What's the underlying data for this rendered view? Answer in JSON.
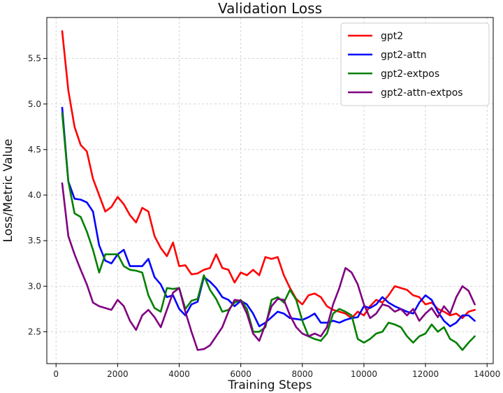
{
  "chart_data": {
    "type": "line",
    "title": "Validation Loss",
    "xlabel": "Training Steps",
    "ylabel": "Loss/Metric Value",
    "xlim": [
      -300,
      14200
    ],
    "ylim": [
      2.15,
      5.95
    ],
    "xticks": [
      0,
      2000,
      4000,
      6000,
      8000,
      10000,
      12000,
      14000
    ],
    "yticks": [
      2.5,
      3.0,
      3.5,
      4.0,
      4.5,
      5.0,
      5.5
    ],
    "xtick_labels": [
      "0",
      "2000",
      "4000",
      "6000",
      "8000",
      "10000",
      "12000",
      "14000"
    ],
    "ytick_labels": [
      "2.5",
      "3.0",
      "3.5",
      "4.0",
      "4.5",
      "5.0",
      "5.5"
    ],
    "grid": true,
    "legend_position": "top-right",
    "x": [
      200,
      400,
      600,
      800,
      1000,
      1200,
      1400,
      1600,
      1800,
      2000,
      2200,
      2400,
      2600,
      2800,
      3000,
      3200,
      3400,
      3600,
      3800,
      4000,
      4200,
      4400,
      4600,
      4800,
      5000,
      5200,
      5400,
      5600,
      5800,
      6000,
      6200,
      6400,
      6600,
      6800,
      7000,
      7200,
      7400,
      7600,
      7800,
      8000,
      8200,
      8400,
      8600,
      8800,
      9000,
      9200,
      9400,
      9600,
      9800,
      10000,
      10200,
      10400,
      10600,
      10800,
      11000,
      11200,
      11400,
      11600,
      11800,
      12000,
      12200,
      12400,
      12600,
      12800,
      13000,
      13200,
      13400,
      13600
    ],
    "series": [
      {
        "name": "gpt2",
        "color": "#ff0000",
        "values": [
          5.8,
          5.15,
          4.75,
          4.55,
          4.48,
          4.18,
          4.0,
          3.82,
          3.87,
          3.98,
          3.9,
          3.78,
          3.7,
          3.86,
          3.82,
          3.55,
          3.42,
          3.33,
          3.48,
          3.22,
          3.23,
          3.13,
          3.14,
          3.18,
          3.2,
          3.35,
          3.2,
          3.18,
          3.04,
          3.15,
          3.12,
          3.18,
          3.12,
          3.32,
          3.3,
          3.32,
          3.12,
          2.98,
          2.86,
          2.8,
          2.9,
          2.92,
          2.88,
          2.78,
          2.74,
          2.72,
          2.7,
          2.65,
          2.72,
          2.68,
          2.78,
          2.85,
          2.82,
          2.9,
          3.0,
          2.98,
          2.96,
          2.9,
          2.88,
          2.8,
          2.82,
          2.75,
          2.72,
          2.68,
          2.7,
          2.65,
          2.72,
          2.74
        ]
      },
      {
        "name": "gpt2-attn",
        "color": "#0000ff",
        "values": [
          4.96,
          4.15,
          3.96,
          3.95,
          3.92,
          3.82,
          3.45,
          3.28,
          3.25,
          3.35,
          3.4,
          3.22,
          3.22,
          3.22,
          3.3,
          3.1,
          3.02,
          2.88,
          2.9,
          2.75,
          2.68,
          2.8,
          2.83,
          3.1,
          3.05,
          2.98,
          2.88,
          2.85,
          2.78,
          2.84,
          2.8,
          2.7,
          2.56,
          2.6,
          2.66,
          2.72,
          2.7,
          2.65,
          2.64,
          2.63,
          2.66,
          2.7,
          2.6,
          2.6,
          2.62,
          2.6,
          2.63,
          2.65,
          2.66,
          2.78,
          2.76,
          2.8,
          2.88,
          2.82,
          2.78,
          2.75,
          2.72,
          2.7,
          2.82,
          2.9,
          2.85,
          2.72,
          2.62,
          2.56,
          2.6,
          2.68,
          2.68,
          2.62
        ]
      },
      {
        "name": "gpt2-extpos",
        "color": "#008000",
        "values": [
          4.9,
          4.15,
          3.8,
          3.76,
          3.6,
          3.4,
          3.15,
          3.35,
          3.35,
          3.35,
          3.22,
          3.18,
          3.17,
          3.15,
          2.9,
          2.76,
          2.72,
          2.98,
          2.97,
          2.98,
          2.75,
          2.84,
          2.86,
          3.12,
          2.96,
          2.86,
          2.72,
          2.74,
          2.82,
          2.85,
          2.75,
          2.5,
          2.5,
          2.55,
          2.85,
          2.88,
          2.82,
          2.96,
          2.85,
          2.62,
          2.45,
          2.42,
          2.4,
          2.48,
          2.7,
          2.75,
          2.72,
          2.68,
          2.42,
          2.38,
          2.42,
          2.48,
          2.5,
          2.6,
          2.58,
          2.55,
          2.45,
          2.38,
          2.45,
          2.48,
          2.58,
          2.5,
          2.55,
          2.42,
          2.38,
          2.3,
          2.38,
          2.45
        ]
      },
      {
        "name": "gpt2-attn-extpos",
        "color": "#800080",
        "values": [
          4.13,
          3.55,
          3.35,
          3.18,
          3.02,
          2.82,
          2.78,
          2.76,
          2.74,
          2.85,
          2.78,
          2.62,
          2.52,
          2.68,
          2.74,
          2.66,
          2.55,
          2.74,
          2.93,
          2.98,
          2.72,
          2.5,
          2.3,
          2.31,
          2.35,
          2.45,
          2.55,
          2.72,
          2.85,
          2.84,
          2.7,
          2.48,
          2.4,
          2.58,
          2.78,
          2.86,
          2.85,
          2.68,
          2.55,
          2.48,
          2.45,
          2.48,
          2.45,
          2.55,
          2.8,
          2.98,
          3.2,
          3.15,
          3.02,
          2.8,
          2.65,
          2.7,
          2.8,
          2.78,
          2.72,
          2.75,
          2.68,
          2.75,
          2.62,
          2.7,
          2.76,
          2.66,
          2.78,
          2.7,
          2.88,
          3.0,
          2.95,
          2.8
        ]
      }
    ]
  }
}
